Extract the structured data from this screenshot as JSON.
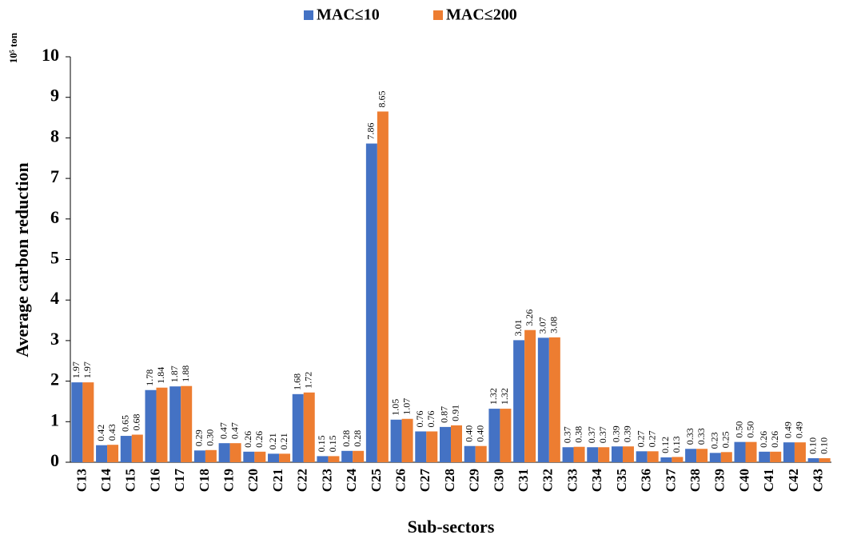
{
  "chart_data": {
    "type": "bar",
    "unit": "10⁵ ton",
    "y_label": "Average carbon reduction",
    "x_label": "Sub-sectors",
    "categories": [
      "C13",
      "C14",
      "C15",
      "C16",
      "C17",
      "C18",
      "C19",
      "C20",
      "C21",
      "C22",
      "C23",
      "C24",
      "C25",
      "C26",
      "C27",
      "C28",
      "C29",
      "C30",
      "C31",
      "C32",
      "C33",
      "C34",
      "C35",
      "C36",
      "C37",
      "C38",
      "C39",
      "C40",
      "C41",
      "C42",
      "C43"
    ],
    "series": [
      {
        "name": "MAC≤10",
        "color": "#4472c4",
        "values": [
          1.97,
          0.42,
          0.65,
          1.78,
          1.87,
          0.29,
          0.47,
          0.26,
          0.21,
          1.68,
          0.15,
          0.28,
          7.86,
          1.05,
          0.76,
          0.87,
          0.4,
          1.32,
          3.01,
          3.07,
          0.37,
          0.37,
          0.39,
          0.27,
          0.12,
          0.33,
          0.23,
          0.5,
          0.26,
          0.49,
          0.1
        ],
        "value_labels": [
          "1.97",
          "0.42",
          "0.65",
          "1.78",
          "1.87",
          "0.29",
          "0.47",
          "0.26",
          "0.21",
          "1.68",
          "0.15",
          "0.28",
          "7.86",
          "1.05",
          "0.76",
          "0.87",
          "0.40",
          "1.32",
          "3.01",
          "3.07",
          "0.37",
          "0.37",
          "0.39",
          "0.27",
          "0.12",
          "0.33",
          "0.23",
          "0.50",
          "0.26",
          "0.49",
          "0.10"
        ]
      },
      {
        "name": "MAC≤200",
        "color": "#ed7d31",
        "values": [
          1.97,
          0.43,
          0.68,
          1.84,
          1.88,
          0.3,
          0.47,
          0.26,
          0.21,
          1.72,
          0.15,
          0.28,
          8.65,
          1.07,
          0.76,
          0.91,
          0.4,
          1.32,
          3.26,
          3.08,
          0.38,
          0.37,
          0.39,
          0.27,
          0.13,
          0.33,
          0.25,
          0.5,
          0.26,
          0.49,
          0.1
        ],
        "value_labels": [
          "1.97",
          "0.43",
          "0.68",
          "1.84",
          "1.88",
          "0.30",
          "0.47",
          "0.26",
          "0.21",
          "1.72",
          "0.15",
          "0.28",
          "8.65",
          "1.07",
          "0.76",
          "0.91",
          "0.40",
          "1.32",
          "3.26",
          "3.08",
          "0.38",
          "0.37",
          "0.39",
          "0.27",
          "0.13",
          "0.33",
          "0.25",
          "0.50",
          "0.26",
          "0.49",
          "0.10"
        ]
      }
    ],
    "ylim": [
      0,
      10
    ],
    "yticks": [
      0,
      1,
      2,
      3,
      4,
      5,
      6,
      7,
      8,
      9,
      10
    ]
  }
}
